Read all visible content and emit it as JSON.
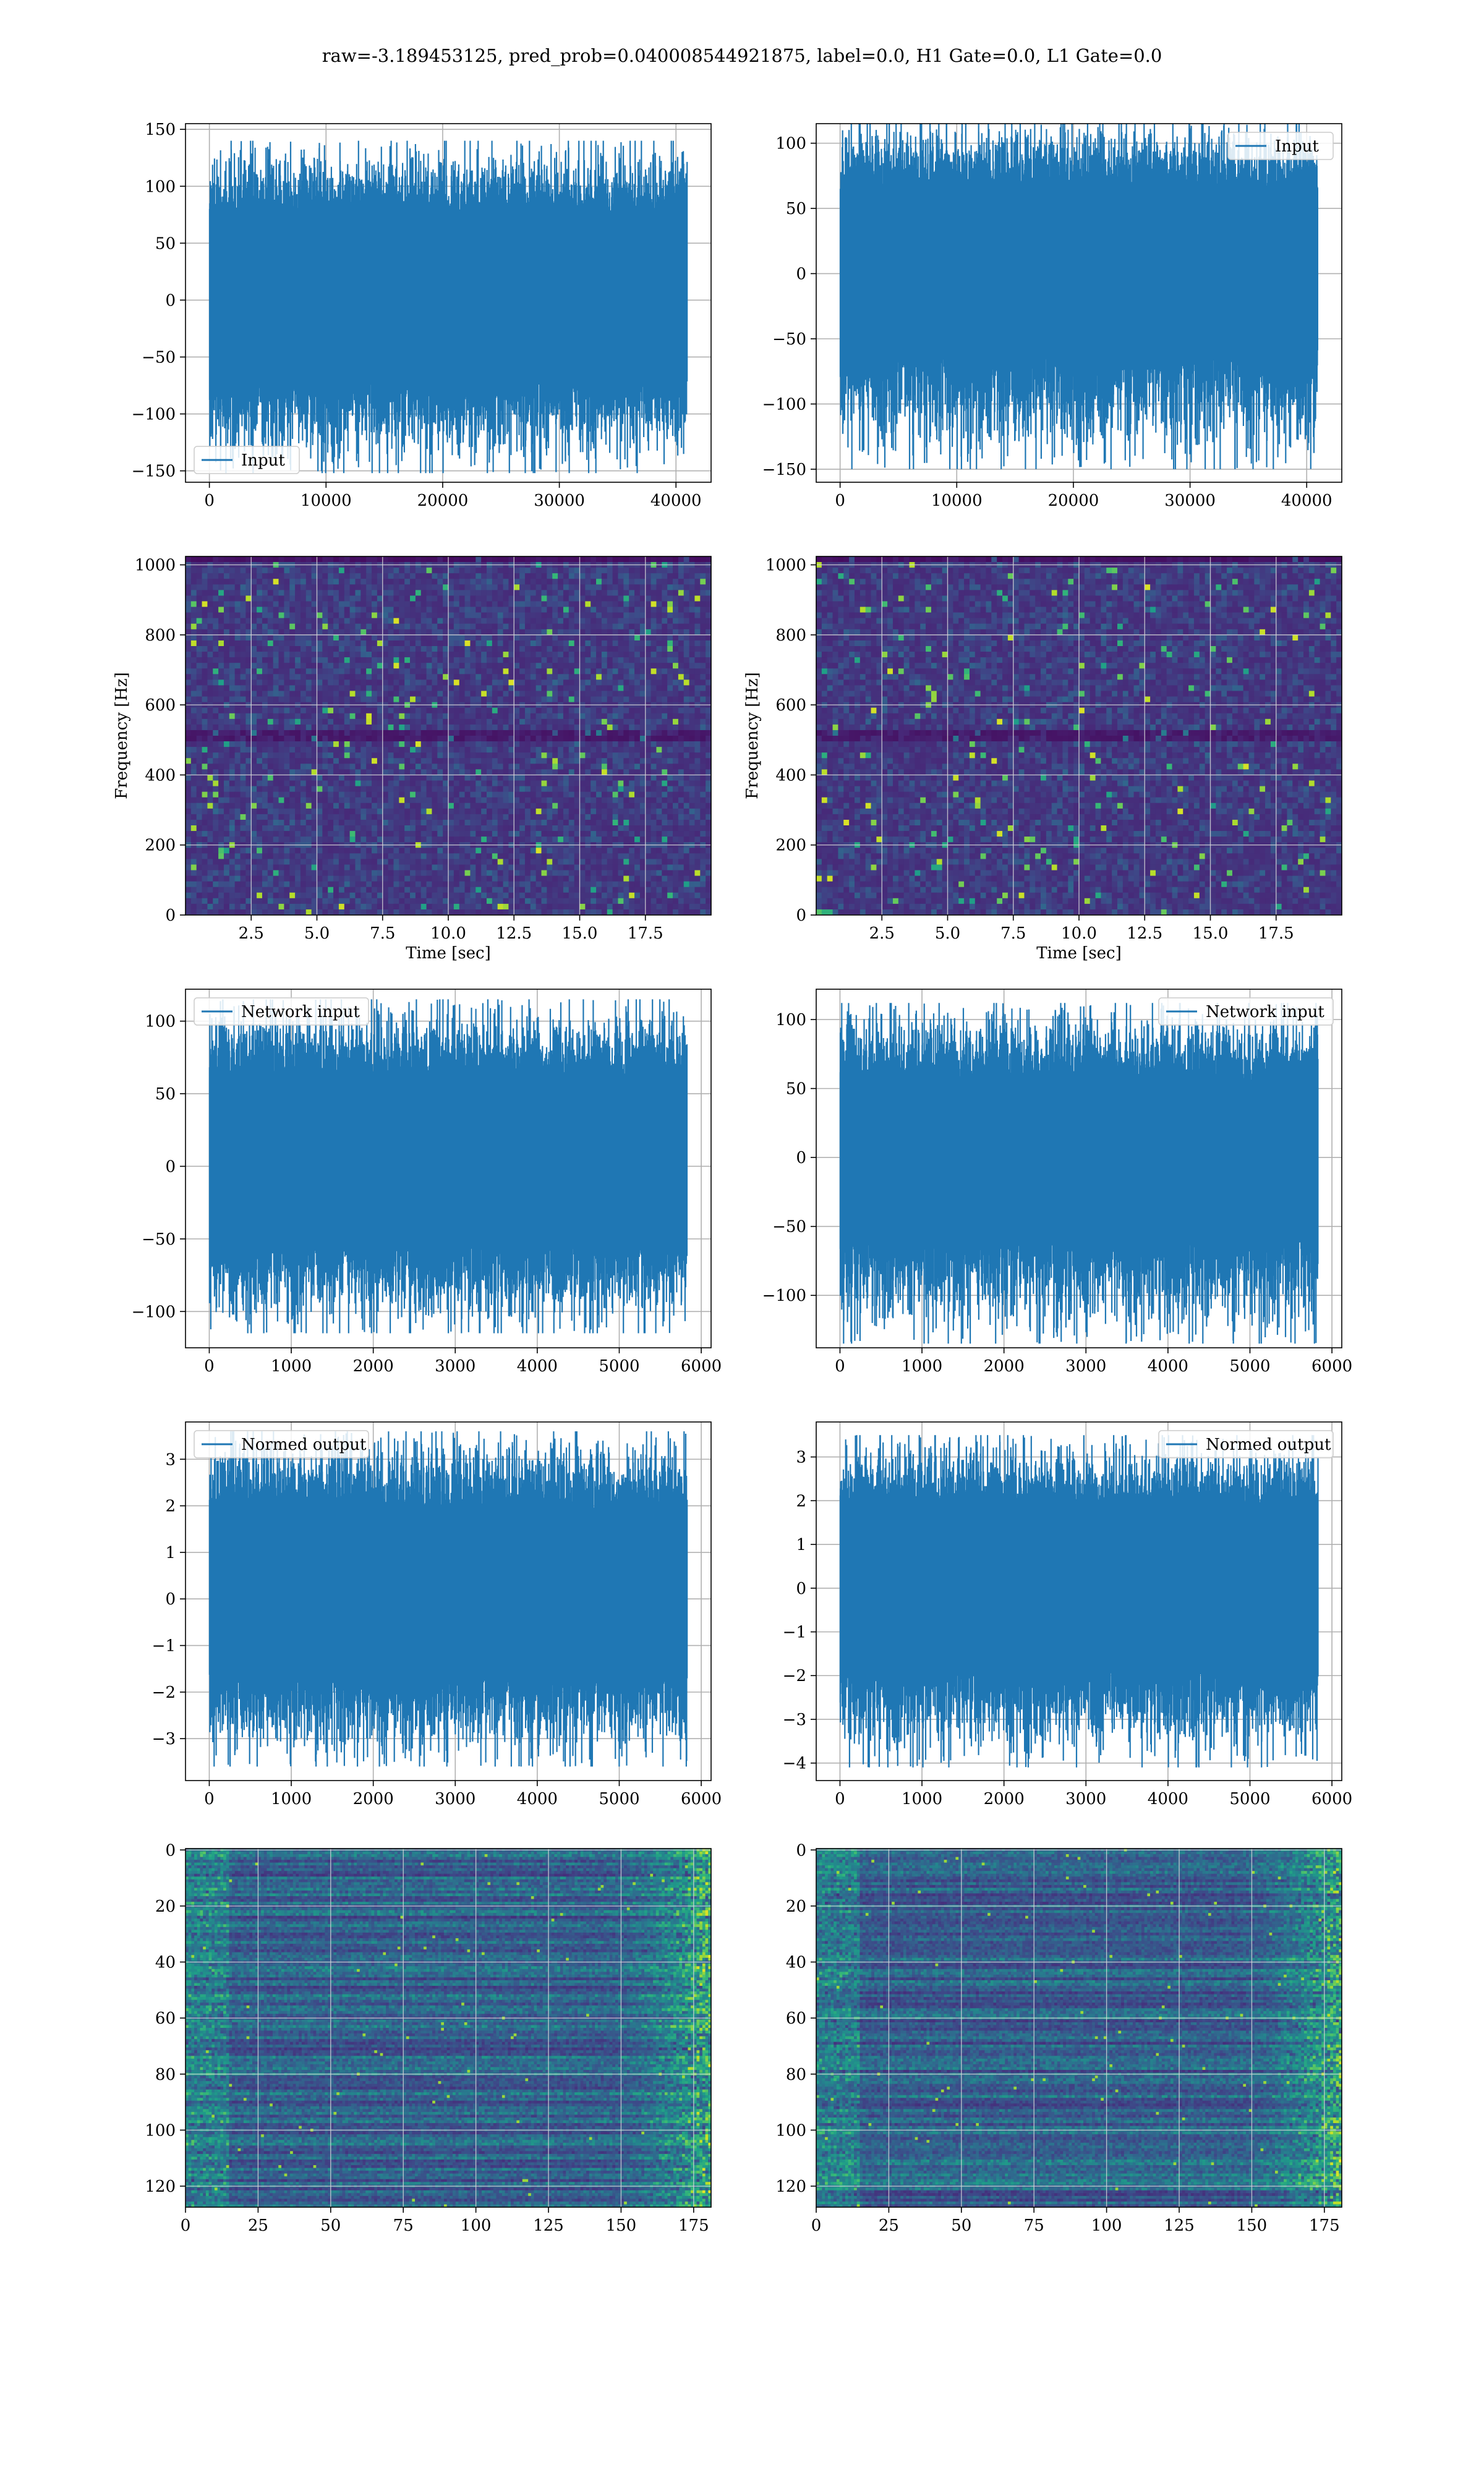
{
  "figure": {
    "suptitle": "raw=-3.189453125, pred_prob=0.040008544921875, label=0.0, H1 Gate=0.0, L1 Gate=0.0",
    "series_color": "#1f77b4",
    "grid_color": "#b0b0b0",
    "colormap": "viridis"
  },
  "chart_data": [
    {
      "id": "input-h1",
      "type": "line",
      "row": 1,
      "col": 1,
      "legend": [
        "Input"
      ],
      "legend_loc": "lower-left",
      "xlim": [
        -2048,
        43008
      ],
      "ylim": [
        -160,
        155
      ],
      "xticks": [
        0,
        10000,
        20000,
        30000,
        40000
      ],
      "yticks": [
        -150,
        -100,
        -50,
        0,
        50,
        100,
        150
      ],
      "x_range": [
        0,
        40960
      ],
      "envelope_upper": 75,
      "envelope_lower": -70,
      "peak_max": 140,
      "peak_min": -152,
      "grid": true
    },
    {
      "id": "input-l1",
      "type": "line",
      "row": 1,
      "col": 2,
      "legend": [
        "Input"
      ],
      "legend_loc": "upper-right",
      "xlim": [
        -2048,
        43008
      ],
      "ylim": [
        -160,
        115
      ],
      "xticks": [
        0,
        10000,
        20000,
        30000,
        40000
      ],
      "yticks": [
        -150,
        -100,
        -50,
        0,
        50,
        100
      ],
      "x_range": [
        0,
        40960
      ],
      "envelope_upper": 65,
      "envelope_lower": -58,
      "peak_max": 120,
      "peak_min": -150,
      "grid": true
    },
    {
      "id": "spectrogram-h1",
      "type": "heatmap",
      "row": 2,
      "col": 1,
      "xlabel": "Time [sec]",
      "ylabel": "Frequency [Hz]",
      "xlim": [
        0,
        20
      ],
      "ylim": [
        0,
        1024
      ],
      "xticks": [
        2.5,
        5.0,
        7.5,
        10.0,
        12.5,
        15.0,
        17.5
      ],
      "xtick_labels": [
        "2.5",
        "5.0",
        "7.5",
        "10.0",
        "12.5",
        "15.0",
        "17.5"
      ],
      "yticks": [
        0,
        200,
        400,
        600,
        800,
        1000
      ],
      "dark_band_hz": 512,
      "grid": true
    },
    {
      "id": "spectrogram-l1",
      "type": "heatmap",
      "row": 2,
      "col": 2,
      "xlabel": "Time [sec]",
      "ylabel": "Frequency [Hz]",
      "xlim": [
        0,
        20
      ],
      "ylim": [
        0,
        1024
      ],
      "xticks": [
        2.5,
        5.0,
        7.5,
        10.0,
        12.5,
        15.0,
        17.5
      ],
      "xtick_labels": [
        "2.5",
        "5.0",
        "7.5",
        "10.0",
        "12.5",
        "15.0",
        "17.5"
      ],
      "yticks": [
        0,
        200,
        400,
        600,
        800,
        1000
      ],
      "dark_band_hz": 512,
      "grid": true
    },
    {
      "id": "network-input-h1",
      "type": "line",
      "row": 3,
      "col": 1,
      "legend": [
        "Network input"
      ],
      "legend_loc": "upper-left",
      "xlim": [
        -290,
        6120
      ],
      "ylim": [
        -125,
        122
      ],
      "xticks": [
        0,
        1000,
        2000,
        3000,
        4000,
        5000,
        6000
      ],
      "yticks": [
        -100,
        -50,
        0,
        50,
        100
      ],
      "x_range": [
        0,
        5830
      ],
      "envelope_upper": 60,
      "envelope_lower": -52,
      "peak_max": 115,
      "peak_min": -115,
      "grid": true
    },
    {
      "id": "network-input-l1",
      "type": "line",
      "row": 3,
      "col": 2,
      "legend": [
        "Network input"
      ],
      "legend_loc": "upper-right",
      "xlim": [
        -290,
        6120
      ],
      "ylim": [
        -138,
        122
      ],
      "xticks": [
        0,
        1000,
        2000,
        3000,
        4000,
        5000,
        6000
      ],
      "yticks": [
        -100,
        -50,
        0,
        50,
        100
      ],
      "x_range": [
        0,
        5830
      ],
      "envelope_upper": 55,
      "envelope_lower": -55,
      "peak_max": 112,
      "peak_min": -135,
      "grid": true
    },
    {
      "id": "normed-output-h1",
      "type": "line",
      "row": 4,
      "col": 1,
      "legend": [
        "Normed output"
      ],
      "legend_loc": "upper-left",
      "xlim": [
        -290,
        6120
      ],
      "ylim": [
        -3.9,
        3.8
      ],
      "xticks": [
        0,
        1000,
        2000,
        3000,
        4000,
        5000,
        6000
      ],
      "yticks": [
        -3,
        -2,
        -1,
        0,
        1,
        2,
        3
      ],
      "x_range": [
        0,
        5830
      ],
      "envelope_upper": 1.9,
      "envelope_lower": -1.6,
      "peak_max": 3.6,
      "peak_min": -3.6,
      "grid": true
    },
    {
      "id": "normed-output-l1",
      "type": "line",
      "row": 4,
      "col": 2,
      "legend": [
        "Normed output"
      ],
      "legend_loc": "upper-right",
      "xlim": [
        -290,
        6120
      ],
      "ylim": [
        -4.4,
        3.8
      ],
      "xticks": [
        0,
        1000,
        2000,
        3000,
        4000,
        5000,
        6000
      ],
      "yticks": [
        -4,
        -3,
        -2,
        -1,
        0,
        1,
        2,
        3
      ],
      "x_range": [
        0,
        5830
      ],
      "envelope_upper": 1.8,
      "envelope_lower": -1.8,
      "peak_max": 3.5,
      "peak_min": -4.1,
      "grid": true
    },
    {
      "id": "feature-map-h1",
      "type": "heatmap",
      "row": 5,
      "col": 1,
      "xlim": [
        0,
        181
      ],
      "ylim": [
        127.5,
        -0.5
      ],
      "xticks": [
        0,
        25,
        50,
        75,
        100,
        125,
        150,
        175
      ],
      "yticks": [
        0,
        20,
        40,
        60,
        80,
        100,
        120
      ],
      "n_rows": 128,
      "n_cols": 181,
      "grid": true
    },
    {
      "id": "feature-map-l1",
      "type": "heatmap",
      "row": 5,
      "col": 2,
      "xlim": [
        0,
        181
      ],
      "ylim": [
        127.5,
        -0.5
      ],
      "xticks": [
        0,
        25,
        50,
        75,
        100,
        125,
        150,
        175
      ],
      "yticks": [
        0,
        20,
        40,
        60,
        80,
        100,
        120
      ],
      "n_rows": 128,
      "n_cols": 181,
      "grid": true
    }
  ]
}
